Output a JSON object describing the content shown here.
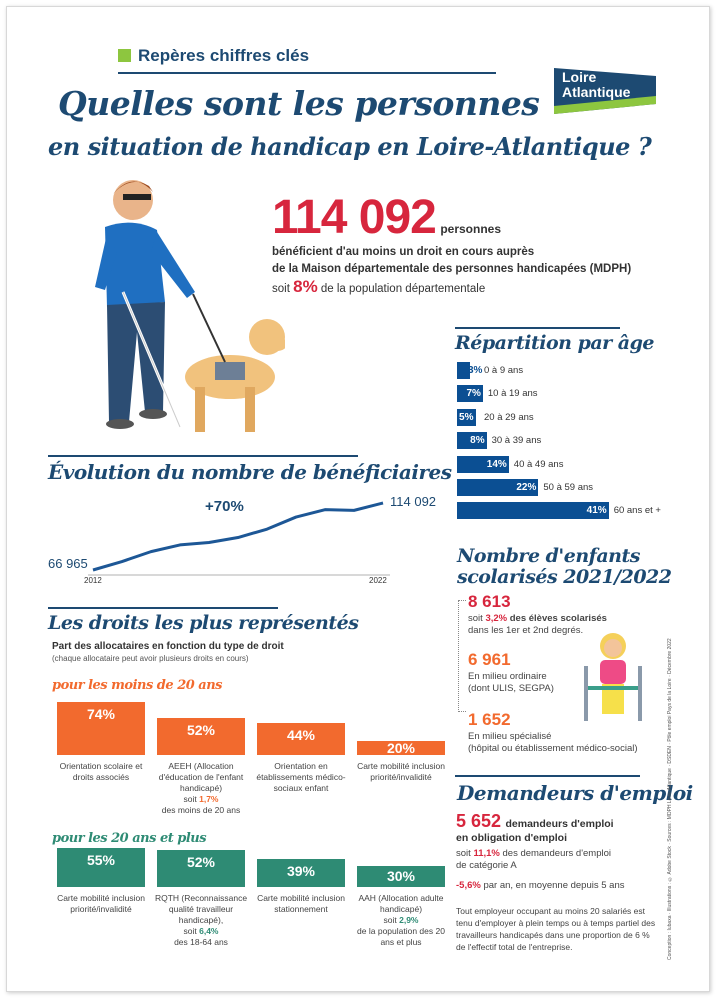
{
  "header": {
    "section_label": "Repères chiffres clés",
    "title_line1": "Quelles sont les personnes",
    "title_line2": "en situation de handicap en Loire-Atlantique ?"
  },
  "logo": {
    "line1": "Loire",
    "line2": "Atlantique"
  },
  "colors": {
    "navy": "#1d4a72",
    "red": "#d7263d",
    "orange": "#f26a2e",
    "teal": "#2e8b74",
    "bar_blue": "#0b4f93",
    "green": "#8dc63f"
  },
  "headline": {
    "number": "114 092",
    "unit": "personnes",
    "line1": "bénéficient d'au moins un droit en cours auprès",
    "line2": "de la Maison départementale des personnes handicapées (MDPH)",
    "share_prefix": "soit",
    "share": "8%",
    "share_suffix": "de la population départementale"
  },
  "age": {
    "title": "Répartition par âge",
    "rows": [
      {
        "pct": "3%",
        "value": 3,
        "label": "0 à 9 ans"
      },
      {
        "pct": "7%",
        "value": 7,
        "label": "10 à 19 ans"
      },
      {
        "pct": "5%",
        "value": 5,
        "label": "20 à 29 ans"
      },
      {
        "pct": "8%",
        "value": 8,
        "label": "30 à 39 ans"
      },
      {
        "pct": "14%",
        "value": 14,
        "label": "40 à 49 ans"
      },
      {
        "pct": "22%",
        "value": 22,
        "label": "50 à 59 ans"
      },
      {
        "pct": "41%",
        "value": 41,
        "label": "60 ans et +"
      }
    ]
  },
  "evolution": {
    "title": "Évolution du nombre de bénéficiaires",
    "growth": "+70%",
    "start_label": "66 965",
    "end_label": "114 092",
    "x_start": "2012",
    "x_end": "2022"
  },
  "chart_data": {
    "type": "line",
    "x": [
      2012,
      2013,
      2014,
      2015,
      2016,
      2017,
      2018,
      2019,
      2020,
      2021,
      2022
    ],
    "values": [
      66965,
      72900,
      79900,
      84600,
      86300,
      89800,
      95700,
      104200,
      109400,
      108900,
      114092
    ],
    "xlim": [
      2012,
      2022
    ]
  },
  "children": {
    "title_line1": "Nombre d'enfants",
    "title_line2": "scolarisés 2021/2022",
    "total": "8 613",
    "total_prefix": "soit",
    "total_pct": "3,2%",
    "total_text": "des élèves scolarisés",
    "total_text2": "dans les 1er et 2nd degrés.",
    "ordinary": "6 961",
    "ordinary_text1": "En milieu ordinaire",
    "ordinary_text2": "(dont ULIS, SEGPA)",
    "special": "1 652",
    "special_text1": "En milieu spécialisé",
    "special_text2": "(hôpital ou établissement médico-social)"
  },
  "jobs": {
    "title": "Demandeurs d'emploi",
    "number": "5 652",
    "label1": "demandeurs d'emploi",
    "label2": "en obligation d'emploi",
    "share_prefix": "soit",
    "share": "11,1%",
    "share_text": "des demandeurs d'emploi",
    "share_text2": "de catégorie A",
    "trend": "-5,6%",
    "trend_text": "par an, en moyenne depuis 5 ans",
    "note": "Tout employeur occupant au moins 20 salariés est tenu d'employer à plein temps ou à temps partiel des travailleurs handicapés dans une proportion de 6 % de l'effectif total de l'entreprise."
  },
  "rights": {
    "title": "Les droits les plus représentés",
    "subtitle": "Part des allocataires en fonction du type de droit",
    "note": "(chaque allocataire peut avoir plusieurs droits en cours)",
    "under20": {
      "heading": "pour les moins de 20 ans",
      "items": [
        {
          "pct": "74%",
          "value": 74,
          "caption": "Orientation scolaire et droits associés"
        },
        {
          "pct": "52%",
          "value": 52,
          "caption": "AEEH (Allocation d'éducation de l'enfant handicapé)",
          "extra_prefix": "soit",
          "extra": "1,7%",
          "extra_suffix": "des moins de 20 ans"
        },
        {
          "pct": "44%",
          "value": 44,
          "caption": "Orientation en établissements médico-sociaux enfant"
        },
        {
          "pct": "20%",
          "value": 20,
          "caption": "Carte mobilité inclusion priorité/invalidité"
        }
      ]
    },
    "over20": {
      "heading": "pour les 20 ans et plus",
      "items": [
        {
          "pct": "55%",
          "value": 55,
          "caption": "Carte mobilité inclusion priorité/invalidité"
        },
        {
          "pct": "52%",
          "value": 52,
          "caption": "RQTH (Reconnaissance qualité travailleur handicapé),",
          "extra_prefix": "soit",
          "extra": "6,4%",
          "extra_suffix": "des 18-64 ans"
        },
        {
          "pct": "39%",
          "value": 39,
          "caption": "Carte mobilité inclusion stationnement"
        },
        {
          "pct": "30%",
          "value": 30,
          "caption": "AAH (Allocation adulte handicapé)",
          "extra_prefix": "soit",
          "extra": "2,9%",
          "extra_suffix": "de la population des 20 ans et plus"
        }
      ]
    }
  },
  "credits": "Conception : Iubaxa · Illustrations : © Adobe Stock · Sources : MDPH Loire-Atlantique · DSDEN · Pôle emploi Pays de la Loire · Décembre 2022"
}
